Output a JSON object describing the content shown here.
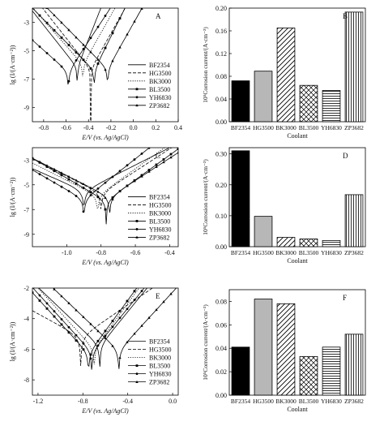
{
  "figure": {
    "categories": [
      "BF2354",
      "HG3500",
      "BK3000",
      "BL3500",
      "YH6830",
      "ZP3682"
    ],
    "series_styles": [
      "solid",
      "dash",
      "dot",
      "solid-square",
      "solid-dot",
      "solid-tri"
    ]
  },
  "chart_data": [
    {
      "panel": "A",
      "type": "line",
      "xlabel": "E/V (vs. Ag/AgCl)",
      "ylabel": "lg (I/(A·cm⁻²))",
      "xlim": [
        -0.9,
        0.4
      ],
      "ylim": [
        -10,
        -2
      ],
      "xticks": [
        -0.8,
        -0.6,
        -0.4,
        -0.2,
        0.0,
        0.2,
        0.4
      ],
      "yticks": [
        -9,
        -7,
        -5,
        -3
      ],
      "legend": [
        "BF2354",
        "HG3500",
        "BK3000",
        "BL3500",
        "YH6830",
        "ZP3682"
      ],
      "legend_position": "right",
      "series": [
        {
          "name": "BF2354",
          "ecorr": -0.5,
          "icorr": -6.2,
          "ba": 20,
          "bc": -10
        },
        {
          "name": "HG3500",
          "ecorr": -0.38,
          "icorr": -6.3,
          "ba": 14,
          "bc": -10
        },
        {
          "name": "BK3000",
          "ecorr": -0.45,
          "icorr": -6.0,
          "ba": 14,
          "bc": -9
        },
        {
          "name": "BL3500",
          "ecorr": -0.35,
          "icorr": -6.4,
          "ba": 16,
          "bc": -8
        },
        {
          "name": "YH6830",
          "ecorr": -0.58,
          "icorr": -6.5,
          "ba": 12,
          "bc": -7
        },
        {
          "name": "ZP3682",
          "ecorr": -0.23,
          "icorr": -6.3,
          "ba": 14,
          "bc": -8
        }
      ]
    },
    {
      "panel": "B",
      "type": "bar",
      "xlabel": "Coolant",
      "ylabel": "10⁵Corrosion current/(A·cm⁻²)",
      "ylim": [
        0,
        0.2
      ],
      "yticks": [
        0.0,
        0.04,
        0.08,
        0.12,
        0.16,
        0.2
      ],
      "ytick_labels": [
        "0.00",
        "0.04",
        "0.08",
        "0.12",
        "0.16",
        "0.20"
      ],
      "categories": [
        "BF2354",
        "HG3500",
        "BK3000",
        "BL3500",
        "YH6830",
        "ZP3682"
      ],
      "values": [
        0.072,
        0.089,
        0.165,
        0.064,
        0.055,
        0.193
      ],
      "fills": [
        "black",
        "gray",
        "diag",
        "cross",
        "hlines",
        "vlines"
      ]
    },
    {
      "panel": "C",
      "type": "line",
      "xlabel": "E/V (vs. Ag/AgCl)",
      "ylabel": "lg (I/(A·cm⁻²))",
      "xlim": [
        -1.2,
        -0.35
      ],
      "ylim": [
        -10,
        -2
      ],
      "xticks": [
        -1.0,
        -0.8,
        -0.6,
        -0.4
      ],
      "yticks": [
        -9,
        -7,
        -5,
        -3
      ],
      "legend": [
        "BF2354",
        "HG3500",
        "BK3000",
        "BL3500",
        "YH6830",
        "ZP3682"
      ],
      "legend_position": "right",
      "series": [
        {
          "name": "BF2354",
          "ecorr": -0.9,
          "icorr": -5.5,
          "ba": 7,
          "bc": -6
        },
        {
          "name": "HG3500",
          "ecorr": -0.8,
          "icorr": -5.7,
          "ba": 9,
          "bc": -7
        },
        {
          "name": "BK3000",
          "ecorr": -0.82,
          "icorr": -5.9,
          "ba": 10,
          "bc": -7
        },
        {
          "name": "BL3500",
          "ecorr": -0.77,
          "icorr": -6.3,
          "ba": 10,
          "bc": -8
        },
        {
          "name": "YH6830",
          "ecorr": -0.9,
          "icorr": -6.2,
          "ba": 11,
          "bc": -8
        },
        {
          "name": "ZP3682",
          "ecorr": -0.75,
          "icorr": -6.0,
          "ba": 9,
          "bc": -7
        }
      ]
    },
    {
      "panel": "D",
      "type": "bar",
      "xlabel": "Coolant",
      "ylabel": "10⁵Corrosion current/(A·cm⁻²)",
      "ylim": [
        0,
        0.32
      ],
      "yticks": [
        0.0,
        0.1,
        0.2,
        0.3
      ],
      "ytick_labels": [
        "0.00",
        "0.10",
        "0.20",
        "0.30"
      ],
      "categories": [
        "BF2354",
        "HG3500",
        "BK3000",
        "BL3500",
        "YH6830",
        "ZP3682"
      ],
      "values": [
        0.31,
        0.098,
        0.03,
        0.025,
        0.02,
        0.168
      ],
      "fills": [
        "black",
        "gray",
        "diag",
        "cross",
        "hlines",
        "vlines"
      ]
    },
    {
      "panel": "E",
      "type": "line",
      "xlabel": "E/V (vs. Ag/AgCl)",
      "ylabel": "lg (I/(A·cm⁻²))",
      "xlim": [
        -1.25,
        0.05
      ],
      "ylim": [
        -9,
        -2
      ],
      "xticks": [
        -1.2,
        -0.8,
        -0.4,
        0.0
      ],
      "yticks": [
        -8,
        -6,
        -4,
        -2
      ],
      "legend": [
        "BF2354",
        "HG3500",
        "BK3000",
        "BL3500",
        "YH6830",
        "ZP3682"
      ],
      "legend_position": "right",
      "series": [
        {
          "name": "BF2354",
          "ecorr": -0.65,
          "icorr": -5.8,
          "ba": 9,
          "bc": -7
        },
        {
          "name": "HG3500",
          "ecorr": -0.82,
          "icorr": -5.2,
          "ba": 5,
          "bc": -4
        },
        {
          "name": "BK3000",
          "ecorr": -0.7,
          "icorr": -6.0,
          "ba": 10,
          "bc": -8
        },
        {
          "name": "BL3500",
          "ecorr": -0.75,
          "icorr": -6.3,
          "ba": 10,
          "bc": -8
        },
        {
          "name": "YH6830",
          "ecorr": -0.72,
          "icorr": -6.2,
          "ba": 9,
          "bc": -8
        },
        {
          "name": "ZP3682",
          "ecorr": -0.48,
          "icorr": -6.1,
          "ba": 8,
          "bc": -7
        }
      ]
    },
    {
      "panel": "F",
      "type": "bar",
      "xlabel": "Coolant",
      "ylabel": "10⁵Corrosion current/(A·cm⁻²)",
      "ylim": [
        0,
        0.09
      ],
      "yticks": [
        0.0,
        0.02,
        0.04,
        0.06,
        0.08
      ],
      "ytick_labels": [
        "0.00",
        "0.02",
        "0.04",
        "0.06",
        "0.08"
      ],
      "categories": [
        "BF2354",
        "HG3500",
        "BK3000",
        "BL3500",
        "YH6830",
        "ZP3682"
      ],
      "values": [
        0.041,
        0.082,
        0.078,
        0.033,
        0.041,
        0.052
      ],
      "fills": [
        "black",
        "gray",
        "diag",
        "cross",
        "hlines",
        "vlines"
      ]
    }
  ]
}
